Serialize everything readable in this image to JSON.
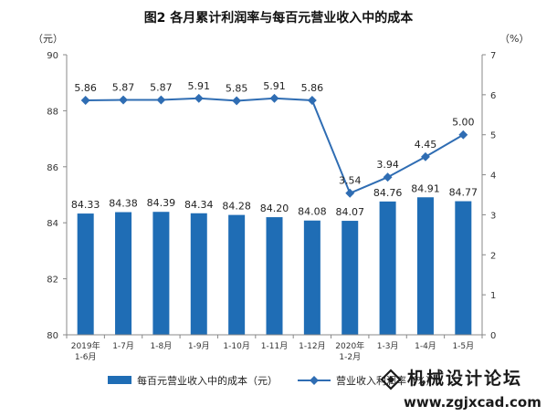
{
  "chart_data": {
    "type": "bar+line",
    "title": "图2 各月累计利润率与每百元营业收入中的成本",
    "left_unit": "（元）",
    "right_unit": "（%）",
    "categories": [
      [
        "2019年",
        "1-6月"
      ],
      [
        "1-7月"
      ],
      [
        "1-8月"
      ],
      [
        "1-9月"
      ],
      [
        "1-10月"
      ],
      [
        "1-11月"
      ],
      [
        "1-12月"
      ],
      [
        "2020年",
        "1-2月"
      ],
      [
        "1-3月"
      ],
      [
        "1-4月"
      ],
      [
        "1-5月"
      ]
    ],
    "left_axis": {
      "min": 80,
      "max": 90,
      "ticks": [
        "80",
        "82",
        "84",
        "86",
        "88",
        "90"
      ]
    },
    "right_axis": {
      "min": 0,
      "max": 7,
      "ticks": [
        "0",
        "1",
        "2",
        "3",
        "4",
        "5",
        "6",
        "7"
      ]
    },
    "series": [
      {
        "name": "每百元营业收入中的成本（元）",
        "type": "bar",
        "axis": "left",
        "color": "#1f6db5",
        "values": [
          84.33,
          84.38,
          84.39,
          84.34,
          84.28,
          84.2,
          84.08,
          84.07,
          84.76,
          84.91,
          84.77
        ],
        "labels": [
          "84.33",
          "84.38",
          "84.39",
          "84.34",
          "84.28",
          "84.20",
          "84.08",
          "84.07",
          "84.76",
          "84.91",
          "84.77"
        ]
      },
      {
        "name": "营业收入利润率（%）",
        "type": "line",
        "axis": "right",
        "color": "#2f6db3",
        "values": [
          5.86,
          5.87,
          5.87,
          5.91,
          5.85,
          5.91,
          5.86,
          3.54,
          3.94,
          4.45,
          5.0
        ],
        "labels": [
          "5.86",
          "5.87",
          "5.87",
          "5.91",
          "5.85",
          "5.91",
          "5.86",
          "3.54",
          "3.94",
          "4.45",
          "5.00"
        ]
      }
    ],
    "legend": {
      "placement": "bottom",
      "bar_label": "每百元营业收入中的成本（元）",
      "line_label": "营业收入利润率（%）"
    }
  },
  "watermark": {
    "text": "机械设计论坛",
    "url": "www.zgjxcad.com"
  }
}
